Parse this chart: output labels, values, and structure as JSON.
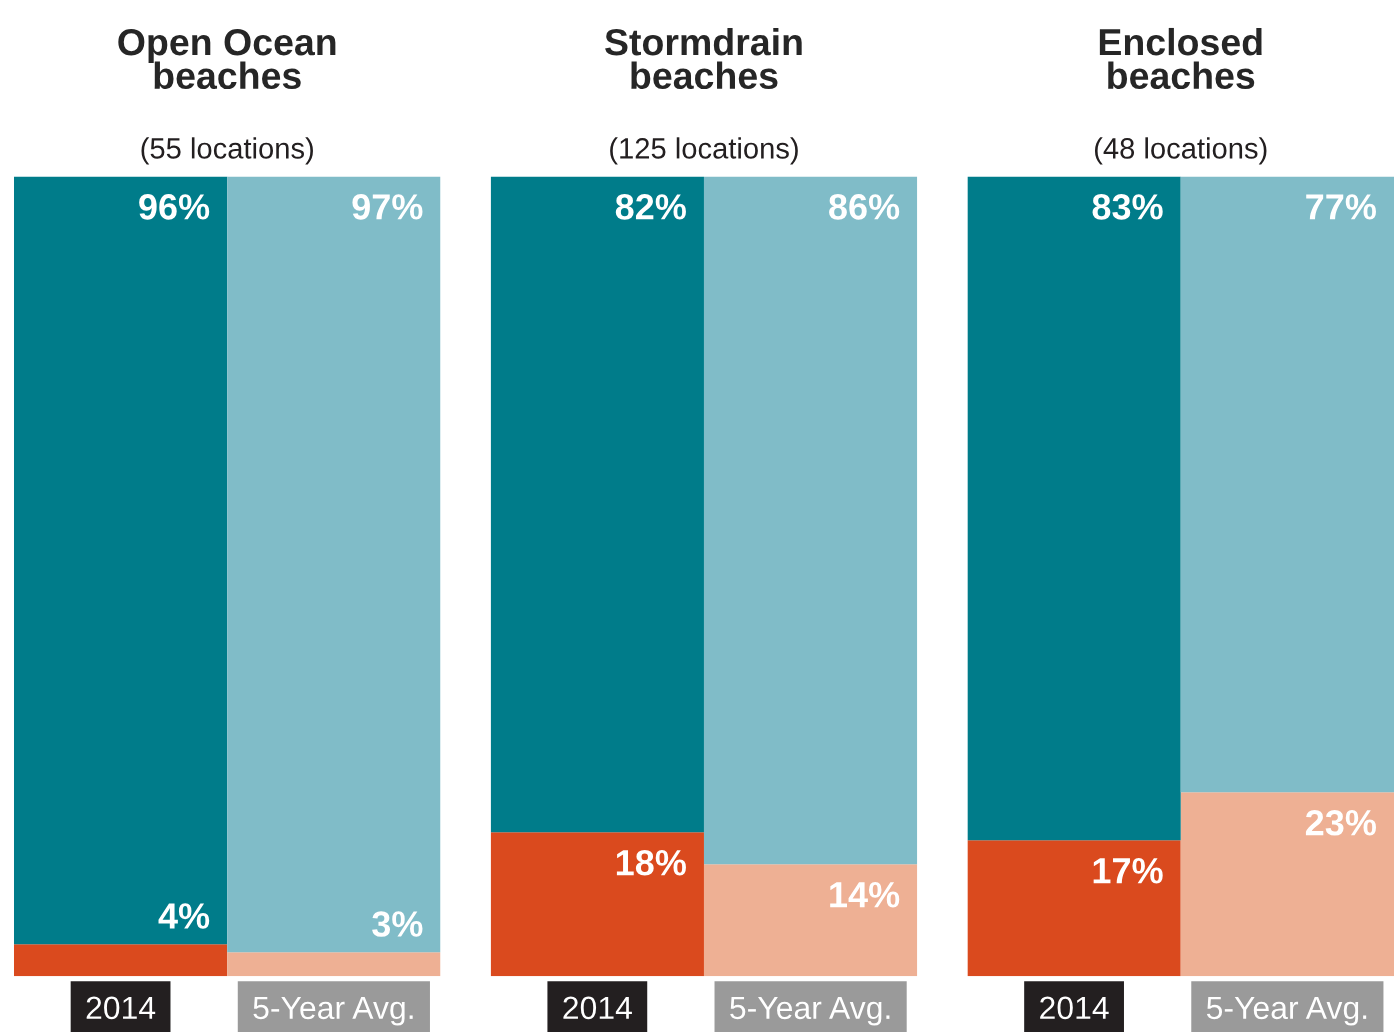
{
  "chart_data": [
    {
      "type": "bar",
      "stacked": true,
      "title": "Open Ocean\nbeaches",
      "subtitle": "(55 locations)",
      "categories": [
        "2014",
        "5-Year Avg."
      ],
      "ylim": [
        0,
        100
      ],
      "tick_labels": "x",
      "series": [
        {
          "colors": [
            "#da4a1e",
            "#eeb094"
          ],
          "values": [
            4,
            3
          ],
          "value_labels": [
            "4%",
            "3%"
          ]
        },
        {
          "colors": [
            "#007c8a",
            "#80bcc8"
          ],
          "values": [
            96,
            97
          ],
          "value_labels": [
            "96%",
            "97%"
          ]
        }
      ]
    },
    {
      "type": "bar",
      "stacked": true,
      "title": "Stormdrain\nbeaches",
      "subtitle": "(125 locations)",
      "categories": [
        "2014",
        "5-Year Avg."
      ],
      "ylim": [
        0,
        100
      ],
      "tick_labels": "x",
      "series": [
        {
          "colors": [
            "#da4a1e",
            "#eeb094"
          ],
          "values": [
            18,
            14
          ],
          "value_labels": [
            "18%",
            "14%"
          ]
        },
        {
          "colors": [
            "#007c8a",
            "#80bcc8"
          ],
          "values": [
            82,
            86
          ],
          "value_labels": [
            "82%",
            "86%"
          ]
        }
      ]
    },
    {
      "type": "bar",
      "stacked": true,
      "title": "Enclosed\nbeaches",
      "subtitle": "(48 locations)",
      "categories": [
        "2014",
        "5-Year Avg."
      ],
      "ylim": [
        0,
        100
      ],
      "tick_labels": "x",
      "series": [
        {
          "colors": [
            "#da4a1e",
            "#eeb094"
          ],
          "values": [
            17,
            23
          ],
          "value_labels": [
            "17%",
            "23%"
          ]
        },
        {
          "colors": [
            "#007c8a",
            "#80bcc8"
          ],
          "values": [
            83,
            77
          ],
          "value_labels": [
            "83%",
            "77%"
          ]
        }
      ]
    }
  ]
}
